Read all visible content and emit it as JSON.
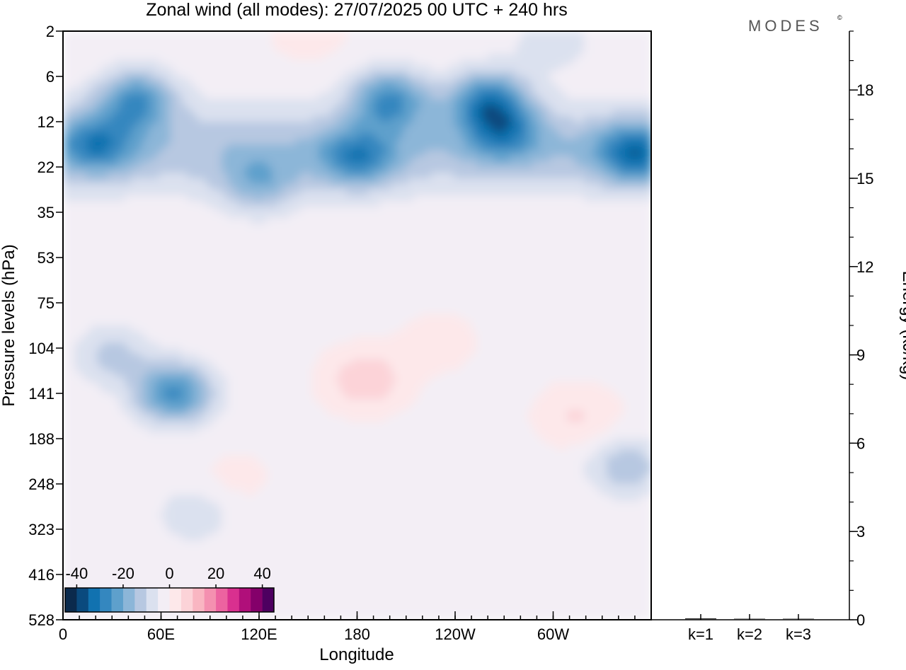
{
  "title": "Zonal wind (all modes):  27/07/2025  00 UTC  + 240 hrs",
  "brand": "MODES",
  "brand_mark": "©",
  "chart_data": [
    {
      "type": "heatmap",
      "title": "Zonal wind (all modes):  27/07/2025  00 UTC  + 240 hrs",
      "xlabel": "Longitude",
      "ylabel": "Pressure levels (hPa)",
      "x_ticks": [
        {
          "lon": 0,
          "label": "0"
        },
        {
          "lon": 60,
          "label": "60E"
        },
        {
          "lon": 120,
          "label": "120E"
        },
        {
          "lon": 180,
          "label": "180"
        },
        {
          "lon": 240,
          "label": "120W"
        },
        {
          "lon": 300,
          "label": "60W"
        }
      ],
      "xlim": [
        0,
        360
      ],
      "y_levels": [
        "2",
        "6",
        "12",
        "22",
        "35",
        "53",
        "75",
        "104",
        "141",
        "188",
        "248",
        "323",
        "416",
        "528"
      ],
      "colorbar": {
        "tick_labels": [
          "-40",
          "-20",
          "0",
          "20",
          "40"
        ],
        "tick_values": [
          -40,
          -20,
          0,
          20,
          40
        ],
        "range": [
          -45,
          45
        ],
        "step": 5,
        "colors": [
          "#0b2a4d",
          "#0a4a7e",
          "#1172b0",
          "#3487bf",
          "#5ea0cc",
          "#8cb6d8",
          "#b7c8e1",
          "#dbe1ef",
          "#f3eef5",
          "#fde8ea",
          "#fcd3d8",
          "#f9b6c2",
          "#f490b0",
          "#ec63a0",
          "#d9308f",
          "#b00f7a",
          "#84006a",
          "#4d0060"
        ]
      },
      "features": [
        {
          "lon": 45,
          "level": 9,
          "value": -22
        },
        {
          "lon": 200,
          "level": 9,
          "value": -23
        },
        {
          "lon": 260,
          "level": 9,
          "value": -24
        },
        {
          "lon": 350,
          "level": 19,
          "value": -22
        },
        {
          "lon": 180,
          "level": 20,
          "value": -18
        },
        {
          "lon": 120,
          "level": 27,
          "value": -13
        },
        {
          "lon": 20,
          "level": 17,
          "value": -18
        },
        {
          "lon": 270,
          "level": 14,
          "value": -17
        },
        {
          "lon": 68,
          "level": 141,
          "value": -25
        },
        {
          "lon": 30,
          "level": 110,
          "value": -10
        },
        {
          "lon": 185,
          "level": 130,
          "value": 11
        },
        {
          "lon": 230,
          "level": 100,
          "value": 4
        },
        {
          "lon": 315,
          "level": 165,
          "value": 7
        },
        {
          "lon": 345,
          "level": 225,
          "value": -12
        },
        {
          "lon": 105,
          "level": 240,
          "value": 3
        },
        {
          "lon": 80,
          "level": 300,
          "value": -7
        },
        {
          "lon": 150,
          "level": 2,
          "value": 4
        },
        {
          "lon": 300,
          "level": 3,
          "value": -7
        }
      ]
    },
    {
      "type": "bar",
      "ylabel": "Energy (kJ/kg)",
      "categories": [
        "k=1",
        "k=2",
        "k=3"
      ],
      "values": [
        0.05,
        0.03,
        0.02
      ],
      "ylim": [
        0,
        20
      ],
      "y_ticks": [
        "0",
        "3",
        "6",
        "9",
        "12",
        "15",
        "18"
      ],
      "y_tick_values": [
        0,
        3,
        6,
        9,
        12,
        15,
        18
      ]
    }
  ]
}
